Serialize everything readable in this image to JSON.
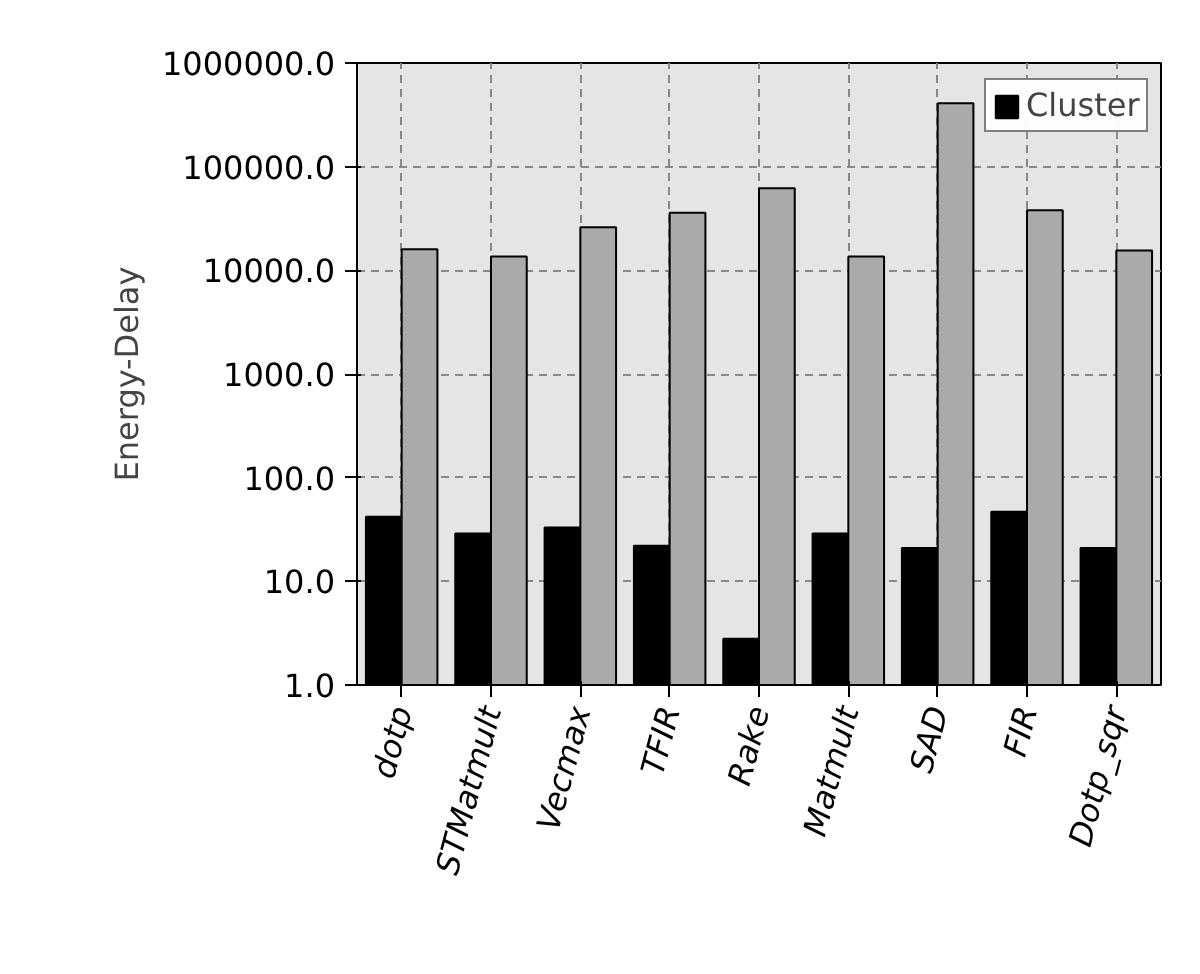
{
  "chart_data": {
    "type": "bar",
    "ylabel": "Energy-Delay",
    "categories": [
      "dotp",
      "STMatmult",
      "Vecmax",
      "TFIR",
      "Rake",
      "Matmult",
      "SAD",
      "FIR",
      "Dotp_sqr"
    ],
    "series": [
      {
        "name": "Cluster",
        "color": "#000000",
        "values": [
          42,
          29,
          33,
          22,
          2.8,
          29,
          21,
          47,
          21
        ]
      },
      {
        "color": "#aaaaaa",
        "values": [
          16000,
          13600,
          26000,
          36000,
          62000,
          13600,
          410000,
          38000,
          15500
        ]
      }
    ],
    "log": true,
    "ylim": [
      1,
      1000000
    ],
    "yticks": [
      {
        "value": 1,
        "label": "1.0"
      },
      {
        "value": 10,
        "label": "10.0"
      },
      {
        "value": 100,
        "label": "100.0"
      },
      {
        "value": 1000,
        "label": "1000.0"
      },
      {
        "value": 10000,
        "label": "10000.0"
      },
      {
        "value": 100000,
        "label": "100000.0"
      },
      {
        "value": 1000000,
        "label": "1000000.0"
      }
    ],
    "grid": true,
    "legend": "top right"
  }
}
